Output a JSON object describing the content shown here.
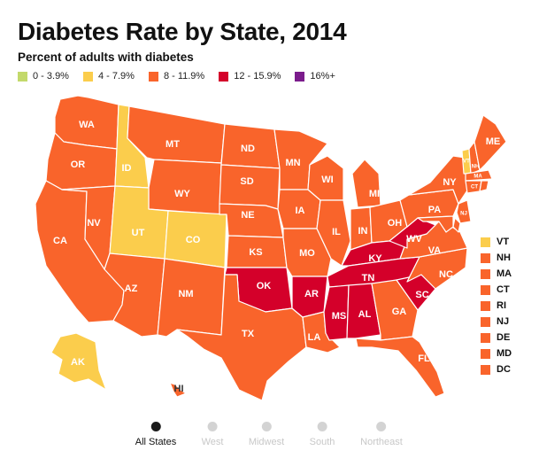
{
  "title": "Diabetes Rate by State, 2014",
  "subtitle": "Percent of adults with diabetes",
  "legend": [
    {
      "label": "0 - 3.9%",
      "color": "#c3d96b"
    },
    {
      "label": "4 - 7.9%",
      "color": "#fbcd4c"
    },
    {
      "label": "8 - 11.9%",
      "color": "#f9642b"
    },
    {
      "label": "12 - 15.9%",
      "color": "#d4002a"
    },
    {
      "label": "16%+",
      "color": "#7b1c8c"
    }
  ],
  "states": {
    "WA": "8 - 11.9%",
    "OR": "8 - 11.9%",
    "CA": "8 - 11.9%",
    "NV": "8 - 11.9%",
    "ID": "4 - 7.9%",
    "UT": "4 - 7.9%",
    "CO": "4 - 7.9%",
    "AZ": "8 - 11.9%",
    "MT": "8 - 11.9%",
    "WY": "8 - 11.9%",
    "NM": "8 - 11.9%",
    "ND": "8 - 11.9%",
    "SD": "8 - 11.9%",
    "NE": "8 - 11.9%",
    "KS": "8 - 11.9%",
    "OK": "12 - 15.9%",
    "TX": "8 - 11.9%",
    "MN": "8 - 11.9%",
    "IA": "8 - 11.9%",
    "MO": "8 - 11.9%",
    "AR": "12 - 15.9%",
    "LA": "8 - 11.9%",
    "WI": "8 - 11.9%",
    "IL": "8 - 11.9%",
    "MS": "12 - 15.9%",
    "MI": "8 - 11.9%",
    "IN": "8 - 11.9%",
    "KY": "12 - 15.9%",
    "TN": "12 - 15.9%",
    "AL": "12 - 15.9%",
    "OH": "8 - 11.9%",
    "WV": "12 - 15.9%",
    "GA": "8 - 11.9%",
    "FL": "8 - 11.9%",
    "SC": "12 - 15.9%",
    "NC": "8 - 11.9%",
    "VA": "8 - 11.9%",
    "PA": "8 - 11.9%",
    "NY": "8 - 11.9%",
    "ME": "8 - 11.9%",
    "NH": "8 - 11.9%",
    "VT": "4 - 7.9%",
    "MA": "8 - 11.9%",
    "CT": "8 - 11.9%",
    "RI": "8 - 11.9%",
    "NJ": "8 - 11.9%",
    "DE": "8 - 11.9%",
    "MD": "8 - 11.9%",
    "DC": "8 - 11.9%",
    "AK": "4 - 7.9%",
    "HI": "8 - 11.9%"
  },
  "small_states": [
    {
      "label": "VT",
      "color": "#fbcd4c"
    },
    {
      "label": "NH",
      "color": "#f9642b"
    },
    {
      "label": "MA",
      "color": "#f9642b"
    },
    {
      "label": "CT",
      "color": "#f9642b"
    },
    {
      "label": "RI",
      "color": "#f9642b"
    },
    {
      "label": "NJ",
      "color": "#f9642b"
    },
    {
      "label": "DE",
      "color": "#f9642b"
    },
    {
      "label": "MD",
      "color": "#f9642b"
    },
    {
      "label": "DC",
      "color": "#f9642b"
    }
  ],
  "nav": [
    {
      "label": "All States",
      "active": true
    },
    {
      "label": "West",
      "active": false
    },
    {
      "label": "Midwest",
      "active": false
    },
    {
      "label": "South",
      "active": false
    },
    {
      "label": "Northeast",
      "active": false
    }
  ]
}
